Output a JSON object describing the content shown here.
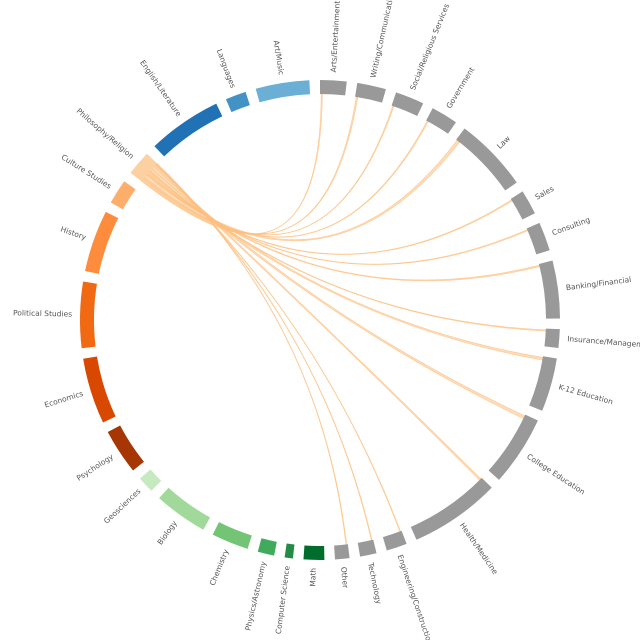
{
  "chart_data": {
    "type": "chord",
    "arcs": [
      {
        "name": "Arts/Entertainment",
        "color": "#999999",
        "value": 6.4
      },
      {
        "name": "Writing/Communication",
        "color": "#999999",
        "value": 7
      },
      {
        "name": "Social/Religious Services",
        "color": "#999999",
        "value": 7
      },
      {
        "name": "Government",
        "color": "#999999",
        "value": 6.5
      },
      {
        "name": "Law",
        "color": "#999999",
        "value": 18
      },
      {
        "name": "Sales",
        "color": "#999999",
        "value": 6
      },
      {
        "name": "Consulting",
        "color": "#999999",
        "value": 7
      },
      {
        "name": "Banking/Financial",
        "color": "#999999",
        "value": 14
      },
      {
        "name": "Insurance/Management",
        "color": "#999999",
        "value": 4.5
      },
      {
        "name": "K-12 Education",
        "color": "#999999",
        "value": 13
      },
      {
        "name": "College Education",
        "color": "#999999",
        "value": 17
      },
      {
        "name": "Health/Medicine",
        "color": "#999999",
        "value": 22
      },
      {
        "name": "Engineering/Construction",
        "color": "#999999",
        "value": 5
      },
      {
        "name": "Technology",
        "color": "#999999",
        "value": 4
      },
      {
        "name": "Other",
        "color": "#999999",
        "value": 3.5
      },
      {
        "name": "Math",
        "color": "#006d2c",
        "value": 5
      },
      {
        "name": "Computer Science",
        "color": "#238b45",
        "value": 2
      },
      {
        "name": "Physics/Astronomy",
        "color": "#41ab5d",
        "value": 4
      },
      {
        "name": "Chemistry",
        "color": "#74c476",
        "value": 9
      },
      {
        "name": "Biology",
        "color": "#a1d99b",
        "value": 13
      },
      {
        "name": "Geosciences",
        "color": "#c7e9c0",
        "value": 4
      },
      {
        "name": "Psychology",
        "color": "#a63603",
        "value": 11
      },
      {
        "name": "Economics",
        "color": "#d94801",
        "value": 16
      },
      {
        "name": "Political Studies",
        "color": "#f16913",
        "value": 16
      },
      {
        "name": "History",
        "color": "#fd8d3c",
        "value": 15
      },
      {
        "name": "Culture Studies",
        "color": "#fdae6b",
        "value": 6
      },
      {
        "name": "Philosophy/Religion",
        "color": "#fdd0a2",
        "value": 6
      },
      {
        "name": "English/Literature",
        "color": "#2171b5",
        "value": 18
      },
      {
        "name": "Languages",
        "color": "#4292c6",
        "value": 5
      },
      {
        "name": "Art/Music",
        "color": "#6baed6",
        "value": 13
      }
    ],
    "flows": [
      {
        "source": 26,
        "target": 0,
        "value": 0.3
      },
      {
        "source": 26,
        "target": 1,
        "value": 0.4
      },
      {
        "source": 26,
        "target": 2,
        "value": 0.3
      },
      {
        "source": 26,
        "target": 3,
        "value": 0.3
      },
      {
        "source": 26,
        "target": 4,
        "value": 0.8
      },
      {
        "source": 26,
        "target": 5,
        "value": 0.3
      },
      {
        "source": 26,
        "target": 6,
        "value": 0.3
      },
      {
        "source": 26,
        "target": 7,
        "value": 0.4
      },
      {
        "source": 26,
        "target": 8,
        "value": 0.3
      },
      {
        "source": 26,
        "target": 9,
        "value": 0.7
      },
      {
        "source": 26,
        "target": 10,
        "value": 0.8
      },
      {
        "source": 26,
        "target": 11,
        "value": 0.5
      },
      {
        "source": 26,
        "target": 12,
        "value": 0.2
      },
      {
        "source": 26,
        "target": 13,
        "value": 0.2
      },
      {
        "source": 26,
        "target": 14,
        "value": 0.2
      }
    ],
    "flow_color": "#fdbf7f"
  }
}
